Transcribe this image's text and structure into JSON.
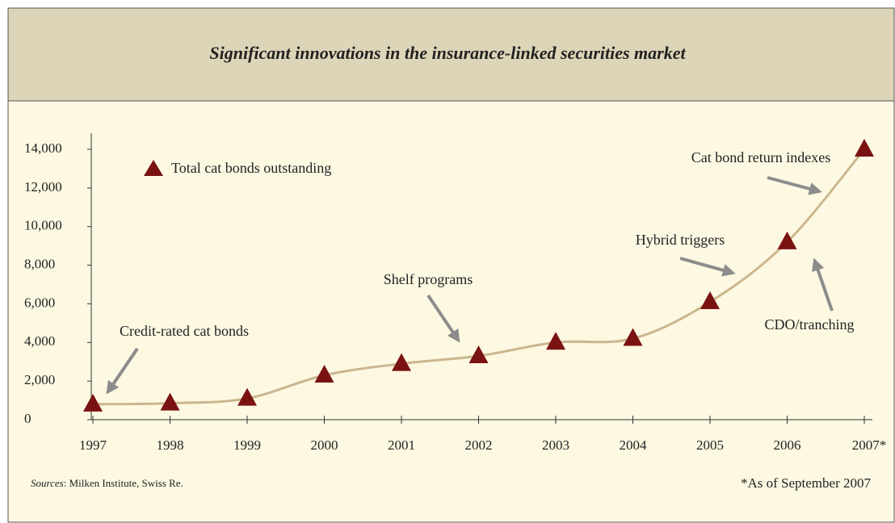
{
  "chart_data": {
    "type": "line",
    "title": "Significant innovations in the insurance-linked securities market",
    "categories": [
      "1997",
      "1998",
      "1999",
      "2000",
      "2001",
      "2002",
      "2003",
      "2004",
      "2005",
      "2006",
      "2007*"
    ],
    "series": [
      {
        "name": "Total cat bonds outstanding",
        "color": "#7a1212",
        "line_color": "#cbb68e",
        "values": [
          800,
          850,
          1100,
          2300,
          2900,
          3300,
          4000,
          4200,
          6100,
          9200,
          14000
        ]
      }
    ],
    "ylim": [
      0,
      14000
    ],
    "yticks": [
      0,
      {
        "value": 2000,
        "label": "2,000"
      },
      {
        "value": 4000,
        "label": "4,000"
      },
      {
        "value": 6000,
        "label": "6,000"
      },
      {
        "value": 8000,
        "label": "8,000"
      },
      {
        "value": 10000,
        "label": "10,000"
      },
      {
        "value": 12000,
        "label": "12,000"
      },
      {
        "value": 14000,
        "label": "14,000"
      }
    ],
    "annotations": [
      "Credit-rated cat bonds",
      "Shelf programs",
      "Hybrid triggers",
      "Cat bond return indexes",
      "CDO/tranching"
    ],
    "sources_label": "Sources",
    "sources": ": Milken Institute, Swiss Re.",
    "footnote": "*As of September 2007"
  }
}
